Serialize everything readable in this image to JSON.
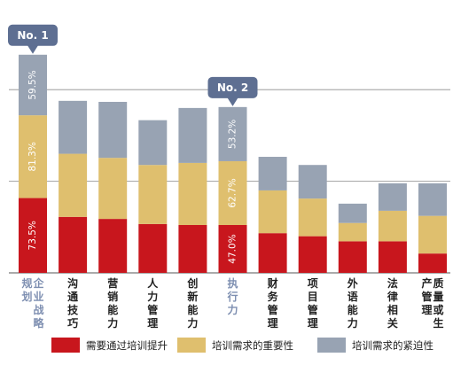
{
  "chart_data": {
    "type": "bar",
    "stacked": true,
    "categories": [
      "企业战略规划",
      "沟通技巧",
      "营销能力",
      "人力管理",
      "创新能力",
      "执行力",
      "财务管理",
      "项目管理",
      "外语能力",
      "法律相关",
      "质量或生产管理"
    ],
    "category_label_columns": [
      [
        "企业战略",
        "规划"
      ],
      [
        "沟通技巧"
      ],
      [
        "营销能力"
      ],
      [
        "人力管理"
      ],
      [
        "创新能力"
      ],
      [
        "执行力"
      ],
      [
        "财务管理"
      ],
      [
        "项目管理"
      ],
      [
        "外语能力"
      ],
      [
        "法律相关"
      ],
      [
        "质量或生",
        "产管理"
      ]
    ],
    "highlighted_categories": [
      0,
      5
    ],
    "series": [
      {
        "name": "需要通过培训提升",
        "color": "#c8161d",
        "values": [
          73.5,
          55,
          53,
          48,
          47,
          47.0,
          39,
          36,
          31,
          31,
          19
        ]
      },
      {
        "name": "培训需求的重要性",
        "color": "#dfbf6e",
        "values": [
          81.3,
          62,
          60,
          58,
          61,
          62.7,
          42,
          37,
          18,
          30,
          37
        ]
      },
      {
        "name": "培训需求的紧迫性",
        "color": "#98a3b3",
        "values": [
          59.5,
          52,
          55,
          44,
          54,
          53.2,
          33,
          33,
          19,
          27,
          32
        ]
      }
    ],
    "data_labels": {
      "0": [
        "73.5%",
        "81.3%",
        "59.5%"
      ],
      "5": [
        "47.0%",
        "62.7%",
        "53.2%"
      ]
    },
    "callouts": [
      {
        "text": "No. 1",
        "category": 0
      },
      {
        "text": "No. 2",
        "category": 5
      }
    ],
    "ylim": [
      0,
      235
    ],
    "gridlines": [
      90,
      180
    ],
    "legend_position": "bottom",
    "colors": {
      "highlight_label": "#7e8fb1",
      "label": "#222222",
      "callout": "#5e6f92",
      "gridline": "#8c8c8c"
    }
  }
}
